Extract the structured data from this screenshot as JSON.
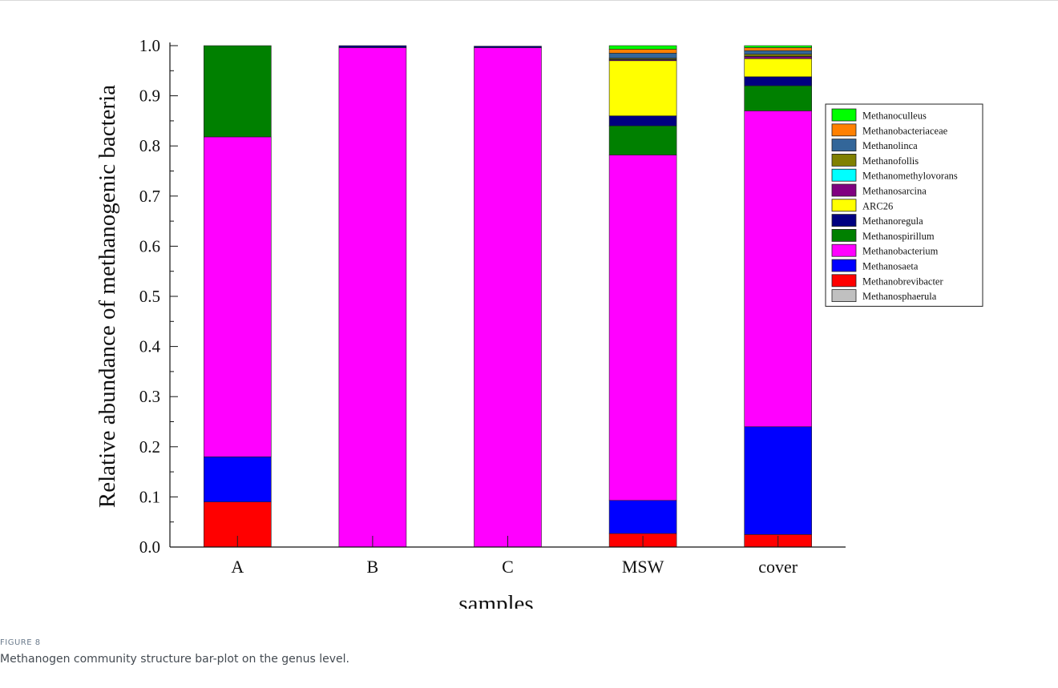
{
  "figure": {
    "label": "FIGURE 8",
    "caption": "Methanogen community structure bar-plot on the genus level."
  },
  "chart_data": {
    "type": "bar",
    "stacked": true,
    "xlabel": "samples",
    "ylabel": "Relative abundance of methanogenic bacteria",
    "ylim": [
      0,
      1.0
    ],
    "yticks": [
      "0.0",
      "0.1",
      "0.2",
      "0.3",
      "0.4",
      "0.5",
      "0.6",
      "0.7",
      "0.8",
      "0.9",
      "1.0"
    ],
    "categories": [
      "A",
      "B",
      "C",
      "MSW",
      "cover"
    ],
    "legend_position": "right",
    "series": [
      {
        "name": "Methanosphaerula",
        "color": "#c0c0c0",
        "values": [
          0,
          0,
          0,
          0,
          0
        ]
      },
      {
        "name": "Methanobrevibacter",
        "color": "#ff0000",
        "values": [
          0.09,
          0,
          0,
          0.027,
          0.025
        ]
      },
      {
        "name": "Methanosaeta",
        "color": "#0000ff",
        "values": [
          0.09,
          0,
          0,
          0.066,
          0.215
        ]
      },
      {
        "name": "Methanobacterium",
        "color": "#ff00ff",
        "values": [
          0.638,
          0.996,
          0.996,
          0.689,
          0.63
        ]
      },
      {
        "name": "Methanospirillum",
        "color": "#008000",
        "values": [
          0.182,
          0,
          0,
          0.058,
          0.05
        ]
      },
      {
        "name": "Methanoregula",
        "color": "#000080",
        "values": [
          0,
          0.004,
          0.003,
          0.02,
          0.018
        ]
      },
      {
        "name": "ARC26",
        "color": "#ffff00",
        "values": [
          0,
          0,
          0,
          0.11,
          0.036
        ]
      },
      {
        "name": "Methanosarcina",
        "color": "#800080",
        "values": [
          0,
          0,
          0,
          0.002,
          0.004
        ]
      },
      {
        "name": "Methanomethylovorans",
        "color": "#00ffff",
        "values": [
          0,
          0,
          0,
          0.001,
          0.001
        ]
      },
      {
        "name": "Methanofollis",
        "color": "#808000",
        "values": [
          0,
          0,
          0,
          0.002,
          0.004
        ]
      },
      {
        "name": "Methanolinca",
        "color": "#336699",
        "values": [
          0,
          0,
          0,
          0.01,
          0.007
        ]
      },
      {
        "name": "Methanobacteriaceae",
        "color": "#ff8000",
        "values": [
          0,
          0,
          0,
          0.008,
          0.006
        ]
      },
      {
        "name": "Methanoculleus",
        "color": "#00ff00",
        "values": [
          0,
          0,
          0,
          0.007,
          0.004
        ]
      }
    ]
  }
}
